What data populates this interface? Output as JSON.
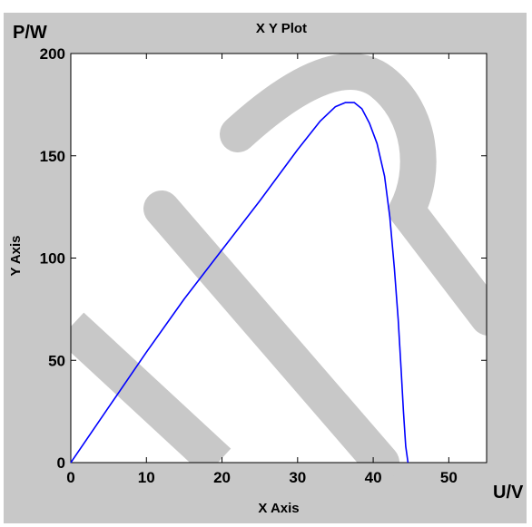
{
  "chart_data": {
    "type": "line",
    "title": "X Y Plot",
    "xlabel": "X Axis",
    "ylabel": "Y Axis",
    "x_unit_label": "U/V",
    "y_unit_label": "P/W",
    "xlim": [
      0,
      55
    ],
    "ylim": [
      0,
      200
    ],
    "xticks": [
      0,
      10,
      20,
      30,
      40,
      50
    ],
    "yticks": [
      0,
      50,
      100,
      150,
      200
    ],
    "grid": false,
    "series": [
      {
        "color": "#0000ff",
        "x": [
          0,
          5,
          10,
          15,
          20,
          25,
          30,
          33,
          35,
          36.3,
          37.5,
          38.5,
          39.5,
          40.5,
          41.5,
          42.2,
          42.8,
          43.3,
          43.7,
          44.0,
          44.3,
          44.6
        ],
        "y": [
          0,
          27,
          54,
          80,
          104,
          128,
          153,
          167,
          174,
          176,
          176,
          173,
          166,
          156,
          140,
          120,
          95,
          70,
          45,
          25,
          8,
          0
        ]
      }
    ]
  },
  "watermark": {
    "color": "#c8c8c8"
  }
}
